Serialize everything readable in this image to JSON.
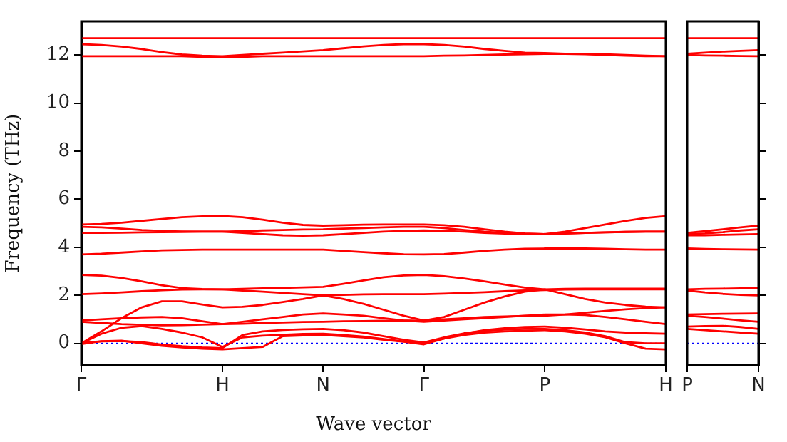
{
  "chart_data": [
    {
      "type": "line",
      "xlabel": "Wave vector",
      "ylabel": "Frequency (THz)",
      "ylim": [
        -0.9,
        13.4
      ],
      "yticks": [
        0,
        2,
        4,
        6,
        8,
        10,
        12
      ],
      "grid": false,
      "legend": false,
      "marker": "none",
      "line_style": "solid",
      "ref_lines": [
        {
          "axis": "y",
          "value": 0,
          "color": "#0000ff",
          "line_style": "dotted"
        }
      ],
      "categories": [
        "Γ",
        null,
        null,
        null,
        null,
        null,
        null,
        "H",
        null,
        null,
        null,
        null,
        "N",
        null,
        null,
        null,
        null,
        "Γ",
        null,
        null,
        null,
        null,
        null,
        "P",
        null,
        null,
        null,
        null,
        null,
        "H"
      ],
      "series": [
        {
          "color": "#ff0000",
          "values": [
            12.7,
            12.7,
            12.7,
            12.7,
            12.7,
            12.7,
            12.7,
            12.7,
            12.7,
            12.7,
            12.7,
            12.7,
            12.7,
            12.7,
            12.7,
            12.7,
            12.7,
            12.7,
            12.7,
            12.7,
            12.7,
            12.7,
            12.7,
            12.7,
            12.7,
            12.7,
            12.7,
            12.7,
            12.7,
            12.7
          ]
        },
        {
          "color": "#ff0000",
          "values": [
            12.45,
            12.42,
            12.35,
            12.25,
            12.12,
            12.02,
            11.97,
            11.95,
            12.0,
            12.05,
            12.1,
            12.15,
            12.2,
            12.28,
            12.36,
            12.42,
            12.45,
            12.45,
            12.42,
            12.35,
            12.25,
            12.17,
            12.1,
            12.08,
            12.05,
            12.03,
            12.0,
            11.97,
            11.95,
            11.95
          ]
        },
        {
          "color": "#ff0000",
          "values": [
            11.95,
            11.95,
            11.95,
            11.95,
            11.95,
            11.95,
            11.92,
            11.9,
            11.92,
            11.95,
            11.95,
            11.95,
            11.95,
            11.95,
            11.95,
            11.95,
            11.95,
            11.95,
            11.97,
            11.98,
            12.0,
            12.02,
            12.03,
            12.05,
            12.05,
            12.05,
            12.03,
            12.0,
            11.97,
            11.95
          ]
        },
        {
          "color": "#ff0000",
          "values": [
            4.95,
            4.97,
            5.02,
            5.1,
            5.18,
            5.25,
            5.29,
            5.3,
            5.25,
            5.15,
            5.02,
            4.93,
            4.9,
            4.92,
            4.94,
            4.95,
            4.95,
            4.95,
            4.92,
            4.85,
            4.75,
            4.65,
            4.58,
            4.55,
            4.65,
            4.8,
            4.95,
            5.1,
            5.22,
            5.3
          ]
        },
        {
          "color": "#ff0000",
          "values": [
            4.85,
            4.83,
            4.78,
            4.72,
            4.68,
            4.66,
            4.65,
            4.65,
            4.67,
            4.7,
            4.72,
            4.74,
            4.75,
            4.78,
            4.8,
            4.83,
            4.85,
            4.85,
            4.8,
            4.72,
            4.65,
            4.6,
            4.56,
            4.55,
            4.58,
            4.6,
            4.62,
            4.64,
            4.65,
            4.65
          ]
        },
        {
          "color": "#ff0000",
          "values": [
            4.6,
            4.6,
            4.61,
            4.62,
            4.63,
            4.64,
            4.65,
            4.65,
            4.6,
            4.55,
            4.5,
            4.48,
            4.5,
            4.55,
            4.6,
            4.65,
            4.68,
            4.7,
            4.68,
            4.65,
            4.6,
            4.57,
            4.55,
            4.55,
            4.57,
            4.6,
            4.62,
            4.64,
            4.65,
            4.65
          ]
        },
        {
          "color": "#ff0000",
          "values": [
            3.7,
            3.73,
            3.78,
            3.83,
            3.87,
            3.89,
            3.9,
            3.9,
            3.9,
            3.9,
            3.9,
            3.9,
            3.9,
            3.85,
            3.8,
            3.75,
            3.71,
            3.7,
            3.72,
            3.78,
            3.85,
            3.9,
            3.94,
            3.95,
            3.95,
            3.95,
            3.94,
            3.92,
            3.9,
            3.9
          ]
        },
        {
          "color": "#ff0000",
          "values": [
            2.85,
            2.82,
            2.72,
            2.58,
            2.42,
            2.3,
            2.26,
            2.25,
            2.27,
            2.29,
            2.31,
            2.33,
            2.35,
            2.48,
            2.62,
            2.75,
            2.83,
            2.85,
            2.8,
            2.7,
            2.58,
            2.45,
            2.32,
            2.25,
            2.05,
            1.85,
            1.7,
            1.6,
            1.53,
            1.5
          ]
        },
        {
          "color": "#ff0000",
          "values": [
            2.05,
            2.08,
            2.12,
            2.17,
            2.21,
            2.24,
            2.25,
            2.25,
            2.2,
            2.15,
            2.1,
            2.05,
            2.0,
            2.02,
            2.04,
            2.05,
            2.05,
            2.05,
            2.07,
            2.1,
            2.13,
            2.17,
            2.2,
            2.22,
            2.24,
            2.25,
            2.25,
            2.25,
            2.25,
            2.25
          ]
        },
        {
          "color": "#ff0000",
          "values": [
            0,
            0.5,
            1.05,
            1.5,
            1.75,
            1.75,
            1.62,
            1.5,
            1.52,
            1.6,
            1.72,
            1.85,
            2.0,
            1.85,
            1.65,
            1.4,
            1.15,
            0.95,
            1.1,
            1.4,
            1.7,
            1.95,
            2.15,
            2.25,
            2.27,
            2.28,
            2.28,
            2.28,
            2.28,
            2.28
          ]
        },
        {
          "color": "#ff0000",
          "values": [
            0.95,
            1.0,
            1.05,
            1.08,
            1.1,
            1.05,
            0.92,
            0.8,
            0.9,
            1.0,
            1.1,
            1.2,
            1.25,
            1.2,
            1.15,
            1.05,
            0.95,
            0.9,
            0.95,
            1.0,
            1.05,
            1.1,
            1.15,
            1.2,
            1.2,
            1.18,
            1.1,
            1.0,
            0.9,
            0.8
          ]
        },
        {
          "color": "#ff0000",
          "values": [
            0.9,
            0.85,
            0.8,
            0.77,
            0.75,
            0.76,
            0.78,
            0.8,
            0.82,
            0.85,
            0.87,
            0.89,
            0.9,
            0.92,
            0.93,
            0.94,
            0.95,
            0.95,
            1.0,
            1.05,
            1.1,
            1.12,
            1.14,
            1.15,
            1.2,
            1.28,
            1.35,
            1.42,
            1.47,
            1.5
          ]
        },
        {
          "color": "#ff0000",
          "values": [
            0,
            0.4,
            0.65,
            0.72,
            0.6,
            0.45,
            0.25,
            -0.15,
            0.25,
            0.32,
            0.36,
            0.39,
            0.4,
            0.35,
            0.28,
            0.18,
            0.08,
            0,
            0.2,
            0.4,
            0.55,
            0.63,
            0.68,
            0.7,
            0.65,
            0.58,
            0.5,
            0.45,
            0.42,
            0.4
          ]
        },
        {
          "color": "#ff0000",
          "values": [
            0.03,
            0.08,
            0.1,
            0.05,
            -0.05,
            -0.12,
            -0.17,
            -0.2,
            0.35,
            0.5,
            0.56,
            0.59,
            0.6,
            0.55,
            0.45,
            0.3,
            0.15,
            0.04,
            0.25,
            0.42,
            0.52,
            0.57,
            0.6,
            0.6,
            0.55,
            0.45,
            0.3,
            0.05,
            0.0,
            0.0
          ]
        },
        {
          "color": "#ff0000",
          "values": [
            -0.03,
            0.09,
            0.11,
            0,
            -0.1,
            -0.17,
            -0.22,
            -0.25,
            -0.2,
            -0.15,
            0.3,
            0.33,
            0.35,
            0.3,
            0.25,
            0.15,
            0.07,
            -0.04,
            0.2,
            0.35,
            0.45,
            0.5,
            0.53,
            0.55,
            0.5,
            0.4,
            0.25,
            0,
            -0.22,
            -0.25
          ]
        }
      ]
    },
    {
      "type": "line",
      "ylim": [
        -0.9,
        13.4
      ],
      "yticks": [
        0,
        2,
        4,
        6,
        8,
        10,
        12
      ],
      "tick_labels": "x",
      "grid": false,
      "legend": false,
      "marker": "none",
      "line_style": "solid",
      "ref_lines": [
        {
          "axis": "y",
          "value": 0,
          "color": "#0000ff",
          "line_style": "dotted"
        }
      ],
      "categories": [
        "P",
        null,
        null,
        null,
        "N"
      ],
      "series": [
        {
          "color": "#ff0000",
          "values": [
            12.7,
            12.7,
            12.7,
            12.7,
            12.7
          ]
        },
        {
          "color": "#ff0000",
          "values": [
            12.05,
            12.1,
            12.14,
            12.17,
            12.2
          ]
        },
        {
          "color": "#ff0000",
          "values": [
            12.0,
            11.98,
            11.97,
            11.96,
            11.95
          ]
        },
        {
          "color": "#ff0000",
          "values": [
            4.6,
            4.67,
            4.75,
            4.83,
            4.9
          ]
        },
        {
          "color": "#ff0000",
          "values": [
            4.55,
            4.58,
            4.63,
            4.7,
            4.75
          ]
        },
        {
          "color": "#ff0000",
          "values": [
            4.5,
            4.5,
            4.52,
            4.53,
            4.55
          ]
        },
        {
          "color": "#ff0000",
          "values": [
            3.95,
            3.93,
            3.92,
            3.91,
            3.9
          ]
        },
        {
          "color": "#ff0000",
          "values": [
            2.25,
            2.27,
            2.28,
            2.29,
            2.3
          ]
        },
        {
          "color": "#ff0000",
          "values": [
            2.2,
            2.12,
            2.06,
            2.02,
            2.0
          ]
        },
        {
          "color": "#ff0000",
          "values": [
            1.2,
            1.22,
            1.23,
            1.24,
            1.25
          ]
        },
        {
          "color": "#ff0000",
          "values": [
            1.15,
            1.1,
            1.03,
            0.96,
            0.9
          ]
        },
        {
          "color": "#ff0000",
          "values": [
            0.7,
            0.72,
            0.73,
            0.68,
            0.6
          ]
        },
        {
          "color": "#ff0000",
          "values": [
            0.6,
            0.55,
            0.5,
            0.45,
            0.4
          ]
        }
      ]
    }
  ]
}
